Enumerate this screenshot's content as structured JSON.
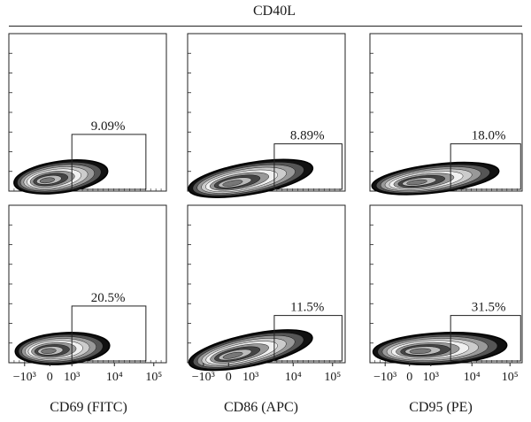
{
  "figure": {
    "group_title": "CD40L",
    "column_labels": [
      "CD69 (FITC)",
      "CD86 (APC)",
      "CD95 (PE)"
    ]
  },
  "chart_data": {
    "type": "scatter",
    "layout": "2x3 flow cytometry contour plots with rectangular gate",
    "x_ticks": [
      "−10³",
      "0",
      "10³",
      "10⁴",
      "10⁵"
    ],
    "panels": [
      {
        "row": 1,
        "col": 1,
        "marker": "CD69 (FITC)",
        "gate_percent": "9.09%"
      },
      {
        "row": 1,
        "col": 2,
        "marker": "CD86 (APC)",
        "gate_percent": "8.89%"
      },
      {
        "row": 1,
        "col": 3,
        "marker": "CD95 (PE)",
        "gate_percent": "18.0%"
      },
      {
        "row": 2,
        "col": 1,
        "marker": "CD69 (FITC)",
        "gate_percent": "20.5%"
      },
      {
        "row": 2,
        "col": 2,
        "marker": "CD86 (APC)",
        "gate_percent": "11.5%"
      },
      {
        "row": 2,
        "col": 3,
        "marker": "CD95 (PE)",
        "gate_percent": "31.5%"
      }
    ]
  }
}
